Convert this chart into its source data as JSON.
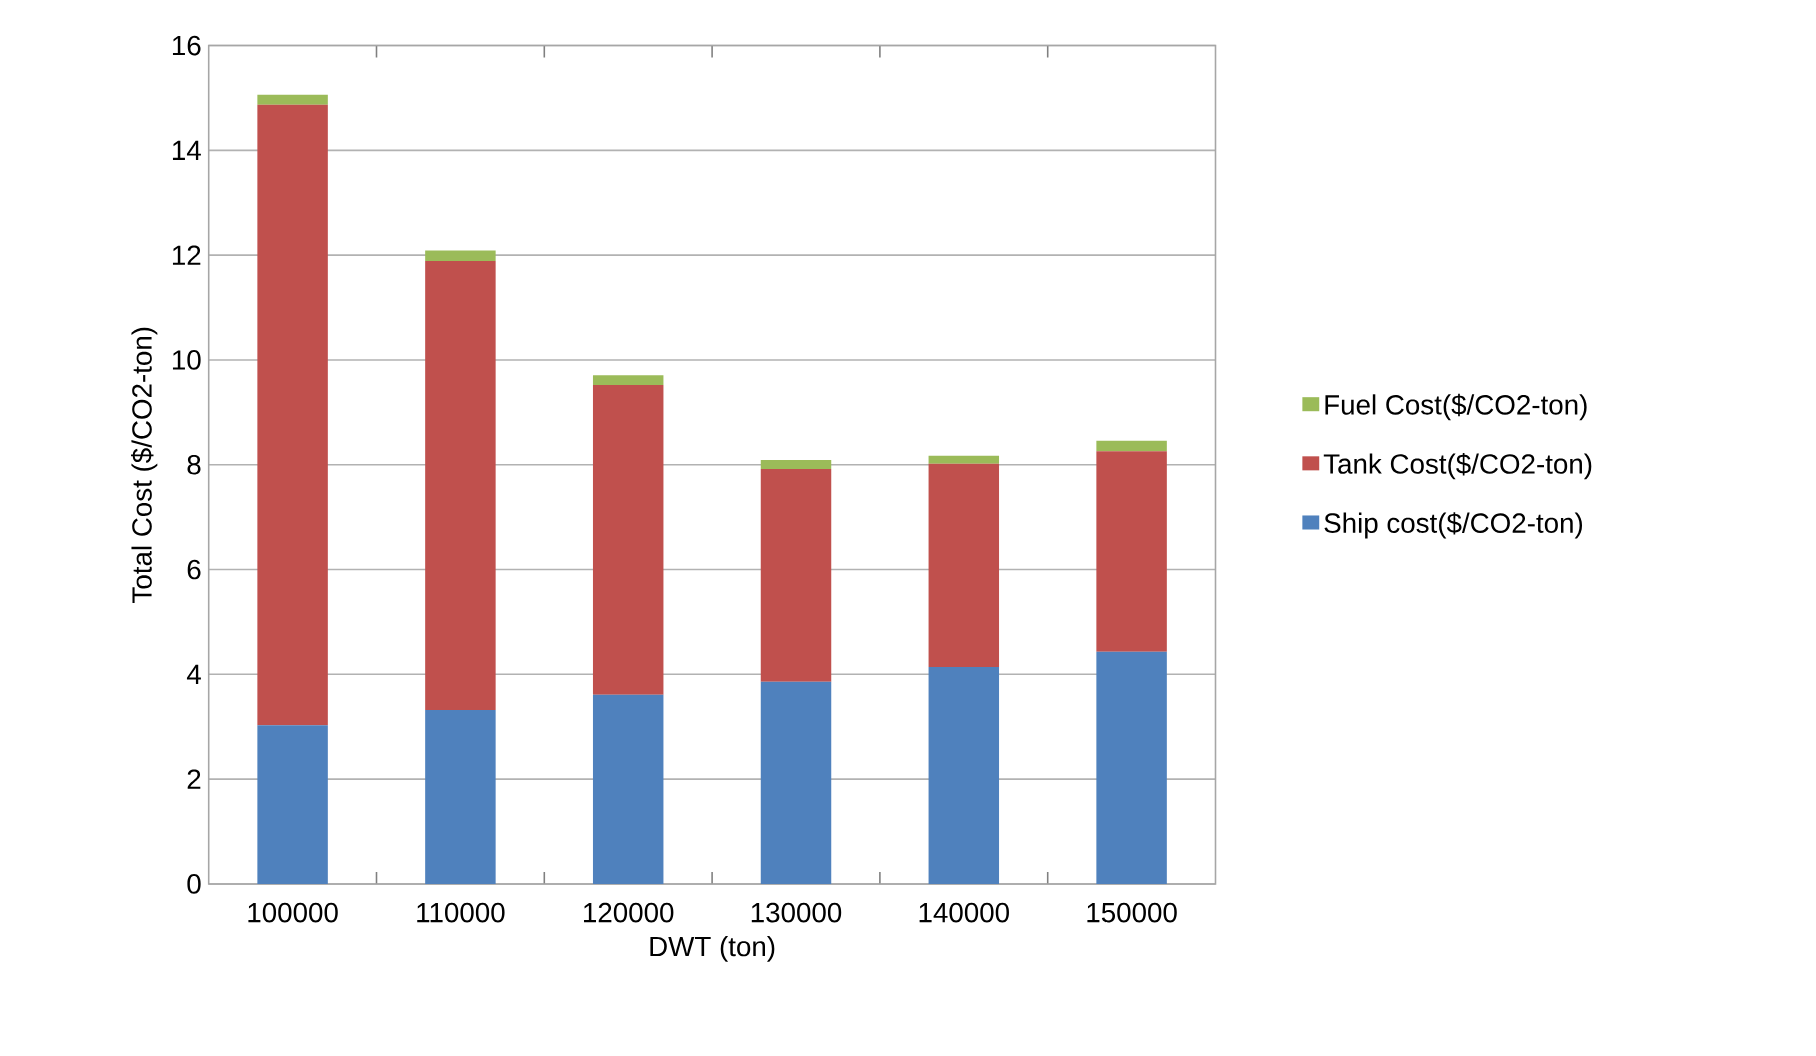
{
  "chart_data": {
    "type": "bar",
    "stacked": true,
    "xlabel": "DWT (ton)",
    "ylabel": "Total Cost ($/CO2-ton)",
    "categories": [
      "100000",
      "110000",
      "120000",
      "130000",
      "140000",
      "150000"
    ],
    "series": [
      {
        "name": "Ship cost($/CO2-ton)",
        "color": "#4f81bd",
        "values": [
          3.03,
          3.32,
          3.61,
          3.86,
          4.14,
          4.43
        ]
      },
      {
        "name": "Tank Cost($/CO2-ton)",
        "color": "#c0504d",
        "values": [
          11.84,
          8.57,
          5.91,
          4.06,
          3.88,
          3.83
        ]
      },
      {
        "name": "Fuel Cost($/CO2-ton)",
        "color": "#9bbb59",
        "values": [
          0.19,
          0.2,
          0.19,
          0.17,
          0.15,
          0.2
        ]
      }
    ],
    "ylim": [
      0,
      16
    ],
    "yticks": [
      0,
      2,
      4,
      6,
      8,
      10,
      12,
      14,
      16
    ],
    "grid": "y",
    "legend": "right"
  }
}
